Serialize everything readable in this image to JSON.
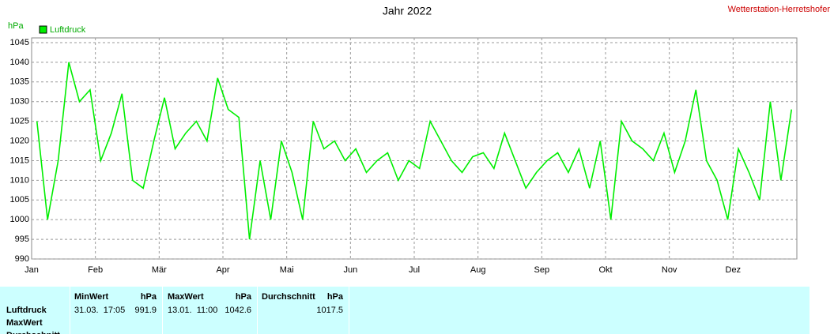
{
  "station": "Wetterstation-Herretshofer",
  "chart_data": {
    "type": "line",
    "title": "Jahr 2022",
    "ylabel": "hPa",
    "categories": [
      "Jan",
      null,
      null,
      null,
      null,
      null,
      "Feb",
      null,
      null,
      null,
      null,
      null,
      "Mär",
      null,
      null,
      null,
      null,
      null,
      "Apr",
      null,
      null,
      null,
      null,
      null,
      "Mai",
      null,
      null,
      null,
      null,
      null,
      "Jun",
      null,
      null,
      null,
      null,
      null,
      "Jul",
      null,
      null,
      null,
      null,
      null,
      "Aug",
      null,
      null,
      null,
      null,
      null,
      "Sep",
      null,
      null,
      null,
      null,
      null,
      "Okt",
      null,
      null,
      null,
      null,
      null,
      "Nov",
      null,
      null,
      null,
      null,
      null,
      "Dez",
      null,
      null,
      null,
      null,
      null
    ],
    "series": [
      {
        "name": "Luftdruck",
        "color": "#00ee00",
        "values": [
          1025,
          1000,
          1015,
          1040,
          1030,
          1033,
          1015,
          1022,
          1032,
          1010,
          1008,
          1020,
          1031,
          1018,
          1022,
          1025,
          1020,
          1036,
          1028,
          1026,
          995,
          1015,
          1000,
          1020,
          1012,
          1000,
          1025,
          1018,
          1020,
          1015,
          1018,
          1012,
          1015,
          1017,
          1010,
          1015,
          1013,
          1025,
          1020,
          1015,
          1012,
          1016,
          1017,
          1013,
          1022,
          1015,
          1008,
          1012,
          1015,
          1017,
          1012,
          1018,
          1008,
          1020,
          1000,
          1025,
          1020,
          1018,
          1015,
          1022,
          1012,
          1020,
          1033,
          1015,
          1010,
          1000,
          1018,
          1012,
          1005,
          1030,
          1010,
          1028
        ]
      }
    ],
    "ylim": [
      990,
      1046.2
    ],
    "yticks": [
      990,
      995,
      1000,
      1005,
      1010,
      1015,
      1020,
      1025,
      1030,
      1035,
      1040,
      1045
    ],
    "grid": true
  },
  "table": {
    "header": [
      "MinWert",
      "hPa",
      "MaxWert",
      "hPa",
      "Durchschnitt",
      "hPa"
    ],
    "rows": [
      [
        "Luftdruck",
        "31.03.  17:05",
        "991.9",
        "13.01.  11:00",
        "1042.6",
        "1017.5"
      ],
      [
        "MaxWert"
      ],
      [
        "Durchschnitt"
      ]
    ]
  }
}
